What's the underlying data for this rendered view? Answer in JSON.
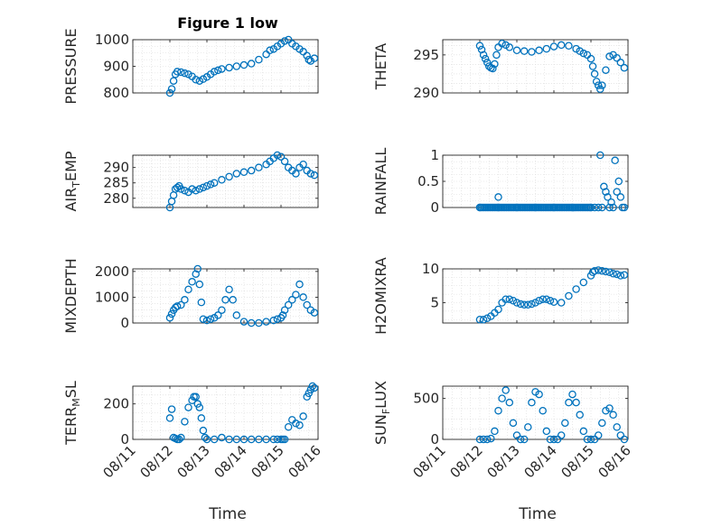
{
  "figure": {
    "title": "Figure 1 low",
    "xlabel": "Time"
  },
  "x_ticks": [
    "08/11",
    "08/12",
    "08/13",
    "08/14",
    "08/15",
    "08/16"
  ],
  "chart_data": [
    {
      "type": "scatter",
      "series": [
        {
          "name": "PRESSURE",
          "color": "#0072BD",
          "x": [
            12.0,
            12.05,
            12.1,
            12.15,
            12.2,
            12.3,
            12.4,
            12.5,
            12.6,
            12.7,
            12.8,
            12.9,
            13.0,
            13.1,
            13.2,
            13.3,
            13.4,
            13.6,
            13.8,
            14.0,
            14.2,
            14.4,
            14.6,
            14.7,
            14.8,
            14.9,
            15.0,
            15.1,
            15.2,
            15.3,
            15.4,
            15.5,
            15.6,
            15.7,
            15.75,
            15.8,
            15.9
          ],
          "y": [
            800,
            815,
            845,
            870,
            880,
            878,
            874,
            870,
            862,
            850,
            845,
            852,
            860,
            870,
            880,
            885,
            890,
            895,
            900,
            905,
            910,
            925,
            945,
            960,
            965,
            975,
            985,
            995,
            1000,
            985,
            975,
            965,
            955,
            940,
            925,
            920,
            930
          ]
        }
      ],
      "xlim": [
        11,
        16
      ],
      "ylim": [
        800,
        1000
      ],
      "yticks": [
        800,
        900,
        1000
      ],
      "ylabel_parts": [
        "PRESSURE"
      ],
      "grid": true
    },
    {
      "type": "scatter",
      "series": [
        {
          "name": "THETA",
          "color": "#0072BD",
          "x": [
            12.0,
            12.05,
            12.1,
            12.15,
            12.2,
            12.25,
            12.3,
            12.35,
            12.4,
            12.45,
            12.5,
            12.6,
            12.7,
            12.8,
            13.0,
            13.2,
            13.4,
            13.6,
            13.8,
            14.0,
            14.2,
            14.4,
            14.6,
            14.7,
            14.8,
            14.9,
            15.0,
            15.05,
            15.1,
            15.15,
            15.2,
            15.25,
            15.3,
            15.4,
            15.5,
            15.6,
            15.7,
            15.8,
            15.9
          ],
          "y": [
            296.2,
            295.7,
            295.0,
            294.5,
            294.0,
            293.5,
            293.3,
            293.2,
            293.8,
            295.0,
            296.0,
            296.5,
            296.3,
            296.0,
            295.6,
            295.5,
            295.4,
            295.6,
            295.8,
            296.1,
            296.3,
            296.2,
            295.8,
            295.5,
            295.2,
            295.0,
            294.5,
            293.5,
            292.5,
            291.5,
            291.0,
            290.5,
            291.0,
            293.0,
            294.8,
            295.0,
            294.6,
            294.0,
            293.3
          ]
        }
      ],
      "xlim": [
        11,
        16
      ],
      "ylim": [
        290,
        297
      ],
      "yticks": [
        290,
        295
      ],
      "ylabel_parts": [
        "THETA"
      ],
      "grid": true
    },
    {
      "type": "scatter",
      "series": [
        {
          "name": "AIR_TEMP",
          "color": "#0072BD",
          "x": [
            12.0,
            12.05,
            12.1,
            12.15,
            12.2,
            12.25,
            12.3,
            12.4,
            12.5,
            12.6,
            12.7,
            12.8,
            12.9,
            13.0,
            13.1,
            13.2,
            13.4,
            13.6,
            13.8,
            14.0,
            14.2,
            14.4,
            14.6,
            14.7,
            14.8,
            14.9,
            15.0,
            15.1,
            15.2,
            15.3,
            15.4,
            15.5,
            15.6,
            15.7,
            15.8,
            15.9
          ],
          "y": [
            277,
            279,
            281,
            283,
            283.5,
            284,
            283,
            282.5,
            282,
            283,
            282.5,
            283,
            283.5,
            284,
            284.5,
            285,
            286,
            287,
            288,
            288.5,
            289,
            290,
            291,
            292,
            293,
            294,
            293.5,
            292,
            290,
            289,
            288,
            290,
            291,
            289,
            288,
            287.5
          ]
        }
      ],
      "xlim": [
        11,
        16
      ],
      "ylim": [
        277,
        294
      ],
      "yticks": [
        280,
        285,
        290
      ],
      "ylabel_parts": [
        "AIR",
        "T",
        "EMP"
      ],
      "grid": true
    },
    {
      "type": "scatter",
      "series": [
        {
          "name": "RAINFALL",
          "color": "#0072BD",
          "x": [
            12.0,
            12.5,
            13.0,
            13.5,
            14.0,
            14.5,
            15.0,
            15.1,
            15.2,
            15.25,
            15.3,
            15.35,
            15.4,
            15.45,
            15.5,
            15.55,
            15.6,
            15.65,
            15.7,
            15.75,
            15.8,
            15.85,
            15.9
          ],
          "y": [
            0,
            0,
            0,
            0,
            0,
            0,
            0,
            0,
            0,
            1.0,
            0,
            0.4,
            0.3,
            0.2,
            0,
            0.1,
            0,
            0.9,
            0.3,
            0.5,
            0.2,
            0,
            0
          ]
        }
      ],
      "zero_run": [
        12.0,
        15.0
      ],
      "extra_points": {
        "x": [
          12.5
        ],
        "y": [
          0.2
        ]
      },
      "xlim": [
        11,
        16
      ],
      "ylim": [
        0,
        1
      ],
      "yticks": [
        0,
        0.5,
        1
      ],
      "ylabel_parts": [
        "RAINFALL"
      ],
      "grid": true
    },
    {
      "type": "scatter",
      "series": [
        {
          "name": "MIXDEPTH",
          "color": "#0072BD",
          "x": [
            12.0,
            12.05,
            12.1,
            12.15,
            12.2,
            12.3,
            12.4,
            12.5,
            12.6,
            12.7,
            12.75,
            12.8,
            12.85,
            12.9,
            13.0,
            13.1,
            13.2,
            13.3,
            13.4,
            13.5,
            13.6,
            13.7,
            13.8,
            14.0,
            14.2,
            14.4,
            14.6,
            14.8,
            14.9,
            15.0,
            15.05,
            15.1,
            15.2,
            15.3,
            15.4,
            15.5,
            15.6,
            15.7,
            15.8,
            15.9
          ],
          "y": [
            200,
            350,
            500,
            600,
            650,
            700,
            900,
            1300,
            1600,
            1900,
            2100,
            1500,
            800,
            150,
            100,
            150,
            200,
            300,
            500,
            900,
            1300,
            900,
            300,
            50,
            0,
            0,
            50,
            100,
            150,
            200,
            300,
            500,
            700,
            900,
            1100,
            1500,
            1000,
            700,
            500,
            400
          ]
        }
      ],
      "xlim": [
        11,
        16
      ],
      "ylim": [
        0,
        2100
      ],
      "yticks": [
        0,
        1000,
        2000
      ],
      "ylabel_parts": [
        "MIXDEPTH"
      ],
      "grid": true
    },
    {
      "type": "scatter",
      "series": [
        {
          "name": "H2OMIXRA",
          "color": "#0072BD",
          "x": [
            12.0,
            12.1,
            12.2,
            12.3,
            12.4,
            12.5,
            12.6,
            12.7,
            12.8,
            12.9,
            13.0,
            13.1,
            13.2,
            13.3,
            13.4,
            13.5,
            13.6,
            13.7,
            13.8,
            13.9,
            14.0,
            14.2,
            14.4,
            14.6,
            14.8,
            15.0,
            15.05,
            15.1,
            15.2,
            15.3,
            15.4,
            15.5,
            15.6,
            15.7,
            15.8,
            15.9
          ],
          "y": [
            2.5,
            2.5,
            2.7,
            3.0,
            3.5,
            4.0,
            5.0,
            5.5,
            5.5,
            5.3,
            5.0,
            4.8,
            4.7,
            4.7,
            4.8,
            5.0,
            5.3,
            5.5,
            5.5,
            5.3,
            5.1,
            5.0,
            6.0,
            7.0,
            8.0,
            9.0,
            9.5,
            9.7,
            9.8,
            9.7,
            9.6,
            9.5,
            9.3,
            9.2,
            9.0,
            9.1
          ]
        }
      ],
      "xlim": [
        11,
        16
      ],
      "ylim": [
        2,
        10
      ],
      "yticks": [
        5,
        10
      ],
      "ylabel_parts": [
        "H2OMIXRA"
      ],
      "grid": true
    },
    {
      "type": "scatter",
      "series": [
        {
          "name": "TERR_MSL",
          "color": "#0072BD",
          "x": [
            12.0,
            12.05,
            12.1,
            12.15,
            12.2,
            12.25,
            12.3,
            12.4,
            12.5,
            12.6,
            12.65,
            12.7,
            12.75,
            12.8,
            12.85,
            12.9,
            12.95,
            13.0,
            13.2,
            13.4,
            13.6,
            13.8,
            14.0,
            14.2,
            14.4,
            14.6,
            14.8,
            14.9,
            15.0,
            15.05,
            15.1,
            15.2,
            15.3,
            15.4,
            15.5,
            15.6,
            15.7,
            15.75,
            15.8,
            15.85,
            15.9
          ],
          "y": [
            120,
            170,
            10,
            5,
            0,
            0,
            10,
            100,
            180,
            220,
            240,
            240,
            200,
            180,
            120,
            50,
            10,
            0,
            0,
            10,
            0,
            0,
            0,
            0,
            0,
            0,
            0,
            0,
            0,
            0,
            0,
            70,
            110,
            90,
            80,
            130,
            240,
            260,
            280,
            300,
            290
          ]
        }
      ],
      "xlim": [
        11,
        16
      ],
      "ylim": [
        0,
        300
      ],
      "yticks": [
        0,
        200
      ],
      "ylabel_parts": [
        "TERR",
        "M",
        "SL"
      ],
      "grid": true
    },
    {
      "type": "scatter",
      "series": [
        {
          "name": "SUN_FLUX",
          "color": "#0072BD",
          "x": [
            12.0,
            12.1,
            12.2,
            12.3,
            12.4,
            12.5,
            12.6,
            12.7,
            12.8,
            12.9,
            13.0,
            13.1,
            13.2,
            13.3,
            13.4,
            13.5,
            13.6,
            13.7,
            13.8,
            13.9,
            14.0,
            14.1,
            14.2,
            14.3,
            14.4,
            14.5,
            14.6,
            14.7,
            14.8,
            14.9,
            15.0,
            15.1,
            15.2,
            15.3,
            15.4,
            15.5,
            15.6,
            15.7,
            15.8,
            15.9
          ],
          "y": [
            0,
            0,
            0,
            10,
            100,
            350,
            500,
            600,
            450,
            200,
            50,
            0,
            0,
            150,
            450,
            580,
            550,
            350,
            100,
            0,
            0,
            0,
            50,
            200,
            450,
            550,
            450,
            300,
            100,
            0,
            0,
            0,
            50,
            200,
            350,
            380,
            300,
            150,
            50,
            0
          ]
        }
      ],
      "xlim": [
        11,
        16
      ],
      "ylim": [
        0,
        650
      ],
      "yticks": [
        0,
        500
      ],
      "ylabel_parts": [
        "SUN",
        "F",
        "LUX"
      ],
      "grid": true
    }
  ]
}
